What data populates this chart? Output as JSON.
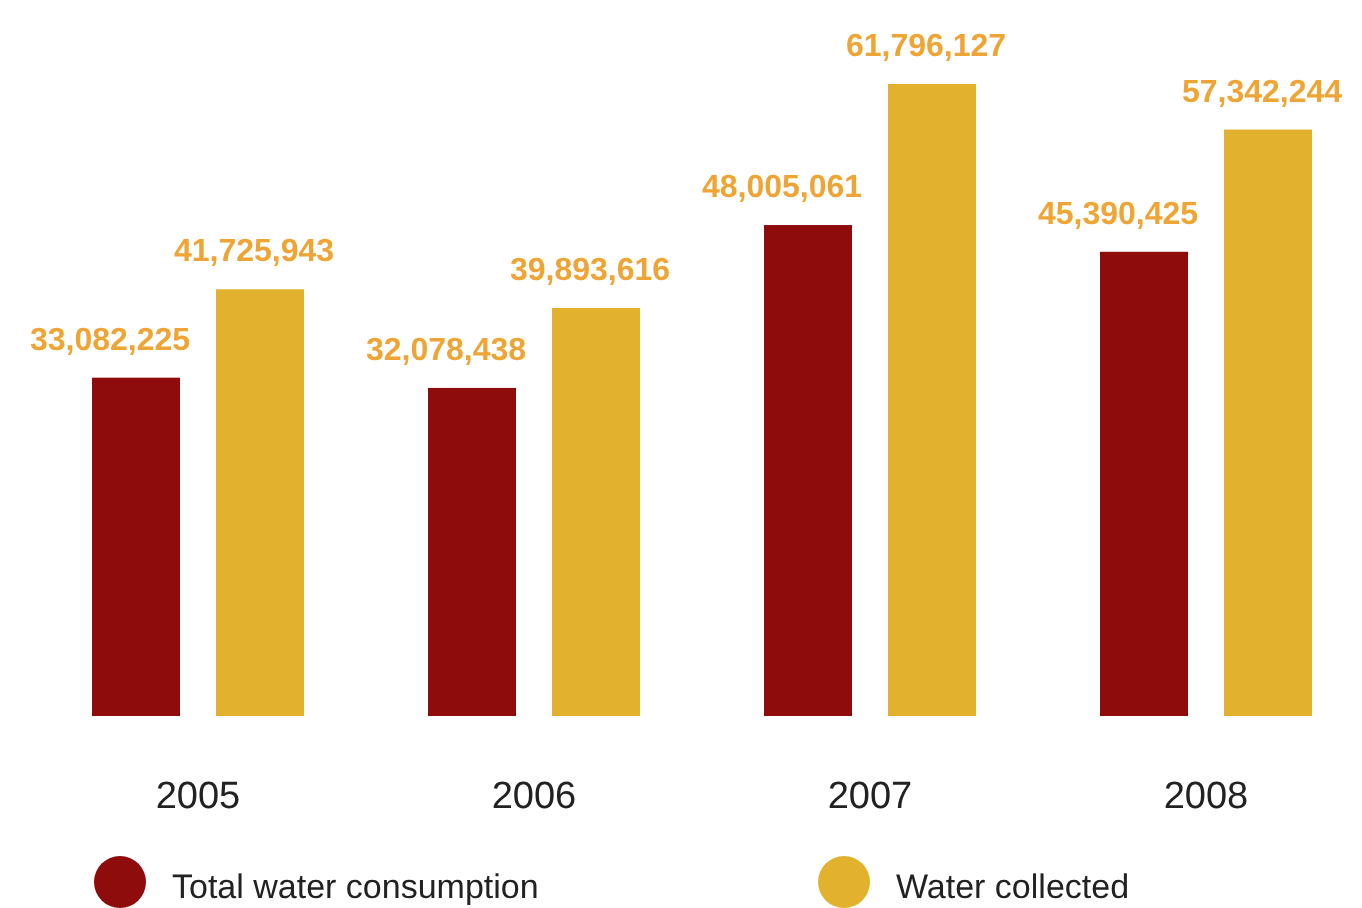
{
  "chart_data": {
    "type": "bar",
    "categories": [
      "2005",
      "2006",
      "2007",
      "2008"
    ],
    "legend": "bottom",
    "series": [
      {
        "name": "Total water consumption",
        "color": "#8e0c0c",
        "values": [
          33082225,
          32078438,
          48005061,
          45390425
        ],
        "value_labels": [
          "33,082,225",
          "32,078,438",
          "48,005,061",
          "45,390,425"
        ]
      },
      {
        "name": "Water collected",
        "color": "#e2b22e",
        "values": [
          41725943,
          39893616,
          61796127,
          57342244
        ],
        "value_labels": [
          "41,725,943",
          "39,893,616",
          "61,796,127",
          "57,342,244"
        ]
      }
    ]
  }
}
